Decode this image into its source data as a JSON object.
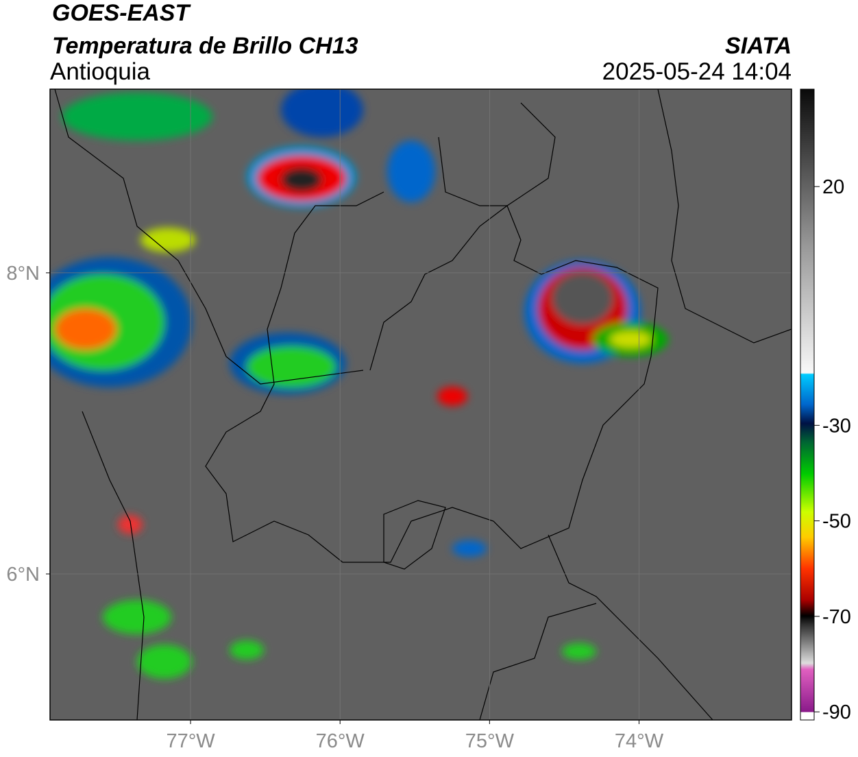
{
  "header": {
    "title": "GOES-EAST",
    "subtitle": "Temperatura de Brillo CH13",
    "region": "Antioquia",
    "source": "SIATA",
    "datetime": "2025-05-24 14:04"
  },
  "map": {
    "lon_range": [
      -77.94,
      -72.98
    ],
    "lat_range": [
      5.03,
      9.22
    ],
    "lon_ticks": [
      {
        "value": -77,
        "label": "77°W"
      },
      {
        "value": -76,
        "label": "76°W"
      },
      {
        "value": -75,
        "label": "75°W"
      },
      {
        "value": -74,
        "label": "74°W"
      }
    ],
    "lat_ticks": [
      {
        "value": 8,
        "label": "8°N"
      },
      {
        "value": 6,
        "label": "6°N"
      }
    ]
  },
  "colorbar": {
    "range": [
      -91.7,
      40.4
    ],
    "ticks": [
      20,
      -30,
      -50,
      -70,
      -90
    ]
  }
}
